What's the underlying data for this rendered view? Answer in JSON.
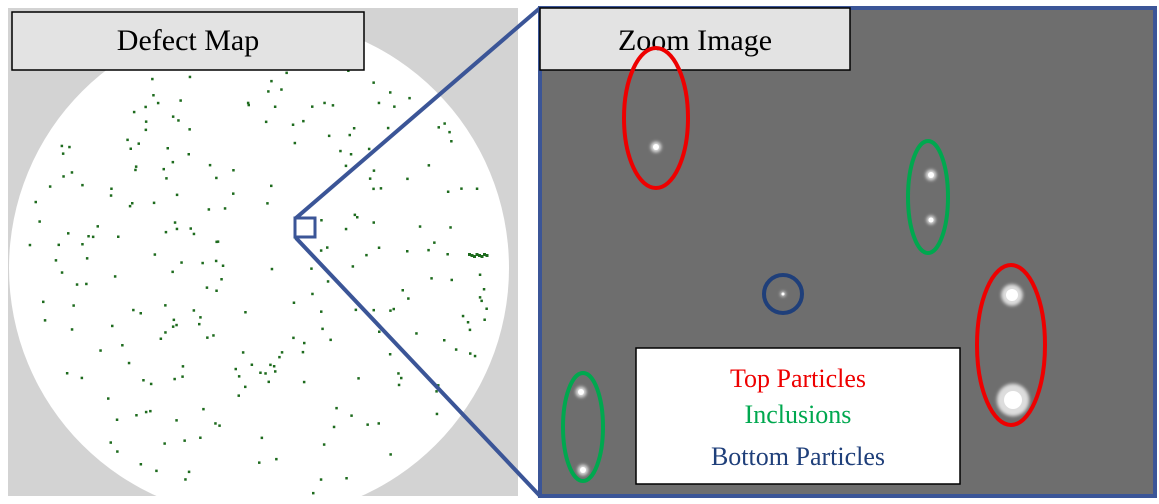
{
  "panels": {
    "defect_map": {
      "label": "Defect Map"
    },
    "zoom_image": {
      "label": "Zoom Image"
    }
  },
  "legend": {
    "items": [
      "Top Particles",
      "Inclusions",
      "Bottom Particles"
    ]
  }
}
